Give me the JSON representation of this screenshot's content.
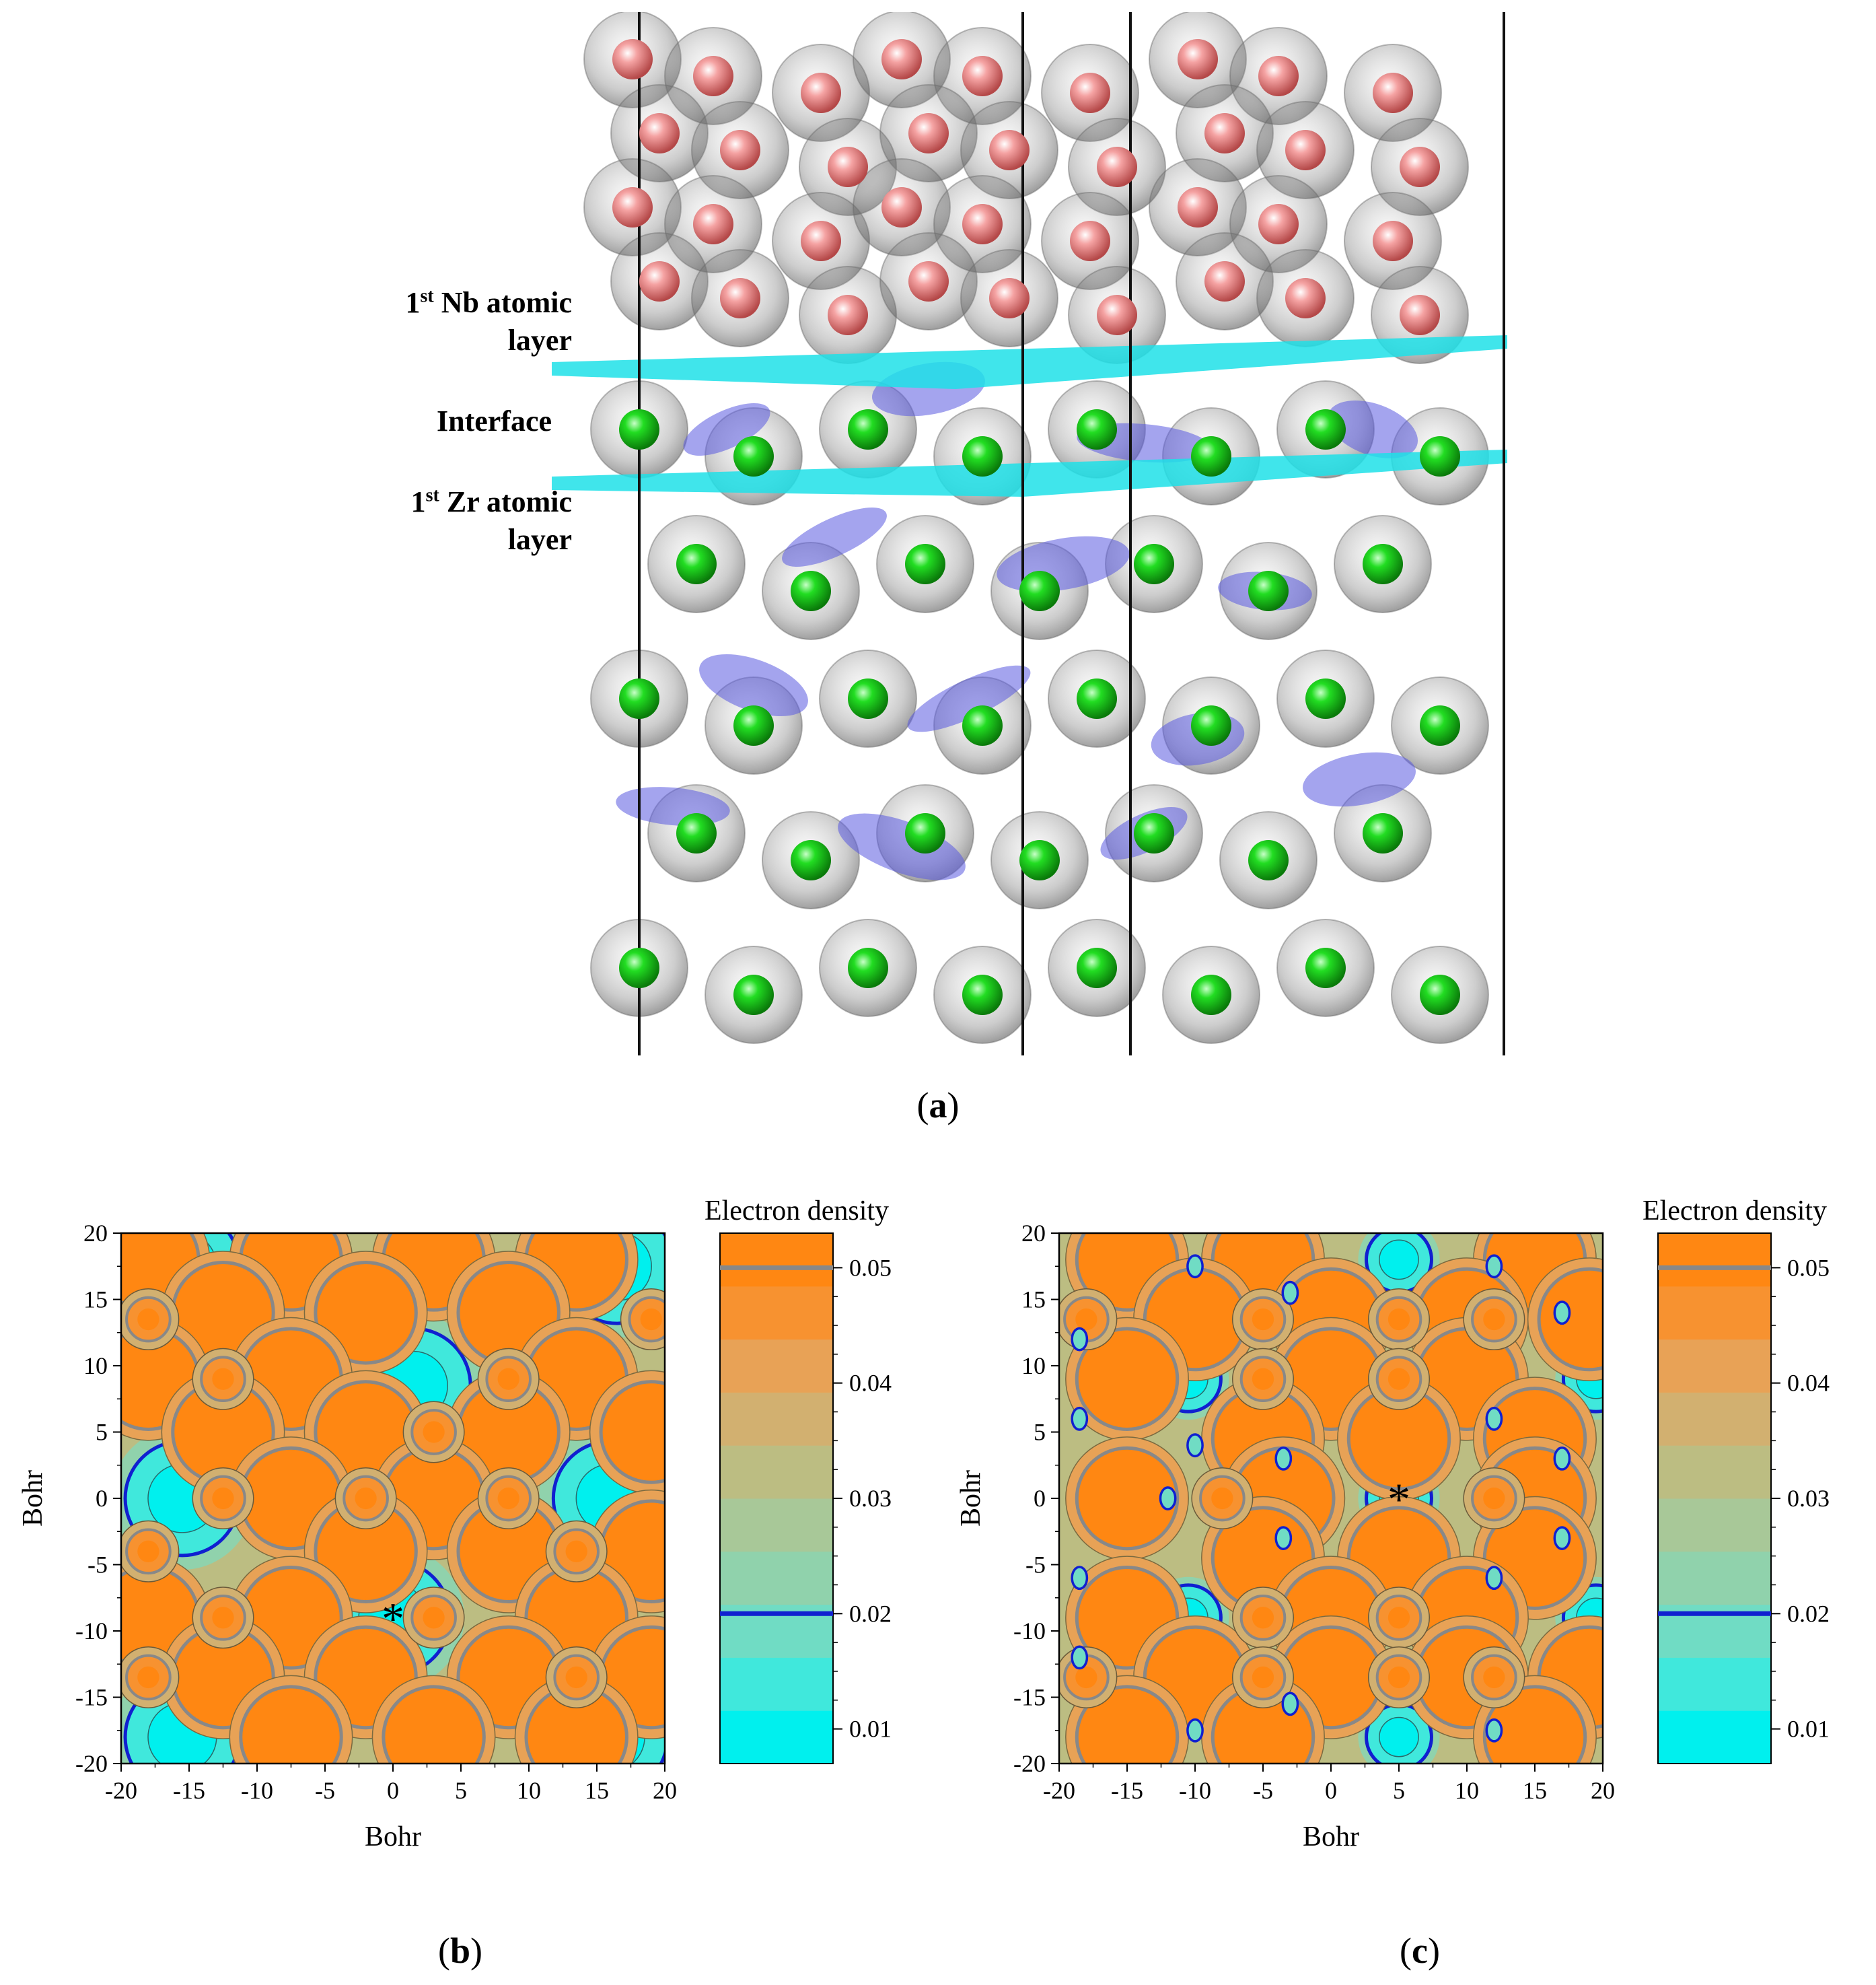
{
  "figure": {
    "panel_a": {
      "caption_letter": "a",
      "labels": {
        "nb_layer_line1_prefix": "1",
        "nb_layer_line1_sup": "st",
        "nb_layer_line1_rest": " Nb atomic",
        "nb_layer_line2": "layer",
        "interface": "Interface",
        "zr_layer_line1_prefix": "1",
        "zr_layer_line1_sup": "st",
        "zr_layer_line1_rest": " Zr atomic",
        "zr_layer_line2": "layer"
      },
      "colors": {
        "nb_atom": "#e87a7a",
        "zr_atom": "#22cc22",
        "shell": "#9a9a9a",
        "isosurface": "#5a5ae0",
        "plane": "#1ee0e8"
      }
    },
    "panel_b": {
      "caption_letter": "b",
      "marker": "*"
    },
    "panel_c": {
      "caption_letter": "c",
      "marker": "*"
    }
  },
  "chart_data": [
    {
      "type": "heatmap",
      "panel": "b",
      "title": "Electron density",
      "xlabel": "Bohr",
      "ylabel": "Bohr",
      "xlim": [
        -20,
        20
      ],
      "ylim": [
        -20,
        20
      ],
      "xticks": [
        "-20",
        "-15",
        "-10",
        "-5",
        "0",
        "5",
        "10",
        "15",
        "20"
      ],
      "yticks": [
        "20",
        "15",
        "10",
        "5",
        "0",
        "-5",
        "-10",
        "-15",
        "-20"
      ],
      "colorbar": {
        "ticks": [
          "0.05",
          "0.04",
          "0.03",
          "0.02",
          "0.01"
        ],
        "range": [
          0.007,
          0.053
        ],
        "highlight_levels": [
          {
            "value": 0.05,
            "color": "#888888"
          },
          {
            "value": 0.02,
            "color": "#1020d0"
          }
        ],
        "colors": [
          "#00f0ee",
          "#40e8dc",
          "#70dcc4",
          "#90d2ac",
          "#a8c898",
          "#bcbd82",
          "#d2b070",
          "#e8a256",
          "#f79230",
          "#ff8712"
        ]
      },
      "marker": {
        "symbol": "*",
        "x": 0,
        "y": -9
      },
      "orange_maxima": [
        [
          -18,
          18
        ],
        [
          -7.5,
          18
        ],
        [
          3,
          18
        ],
        [
          13.5,
          18
        ],
        [
          -12.5,
          14
        ],
        [
          -2,
          14
        ],
        [
          8.5,
          14
        ],
        [
          -18,
          9
        ],
        [
          -7.5,
          9
        ],
        [
          13.5,
          9
        ],
        [
          -12.5,
          5
        ],
        [
          -2,
          5
        ],
        [
          8.5,
          5
        ],
        [
          19,
          5
        ],
        [
          -7.5,
          0
        ],
        [
          3,
          0
        ],
        [
          -2,
          -4
        ],
        [
          8.5,
          -4
        ],
        [
          19,
          -4
        ],
        [
          -18,
          -9
        ],
        [
          -7.5,
          -9
        ],
        [
          13.5,
          -9
        ],
        [
          -12.5,
          -13.5
        ],
        [
          -2,
          -13.5
        ],
        [
          8.5,
          -13.5
        ],
        [
          19,
          -13.5
        ],
        [
          -7.5,
          -18
        ],
        [
          3,
          -18
        ],
        [
          13.5,
          -18
        ]
      ],
      "small_atoms": [
        [
          -18,
          13.5
        ],
        [
          8.5,
          9
        ],
        [
          19,
          13.5
        ],
        [
          -12.5,
          0
        ],
        [
          -2,
          0
        ],
        [
          8.5,
          0
        ],
        [
          -18,
          -4
        ],
        [
          13.5,
          -4
        ],
        [
          3,
          -9
        ],
        [
          -18,
          -13.5
        ],
        [
          13.5,
          -13.5
        ],
        [
          -12.5,
          9
        ],
        [
          3,
          5
        ],
        [
          -12.5,
          -9
        ]
      ],
      "cyan_minima": [
        [
          -15.5,
          17.5
        ],
        [
          16.5,
          17.5
        ],
        [
          1.5,
          8.5
        ],
        [
          -15.5,
          0
        ],
        [
          16,
          0
        ],
        [
          0,
          -9
        ],
        [
          -15.5,
          -18
        ],
        [
          16,
          -18
        ]
      ]
    },
    {
      "type": "heatmap",
      "panel": "c",
      "title": "Electron density",
      "xlabel": "Bohr",
      "ylabel": "Bohr",
      "xlim": [
        -20,
        20
      ],
      "ylim": [
        -20,
        20
      ],
      "xticks": [
        "-20",
        "-15",
        "-10",
        "-5",
        "0",
        "5",
        "10",
        "15",
        "20"
      ],
      "yticks": [
        "20",
        "15",
        "10",
        "5",
        "0",
        "-5",
        "-10",
        "-15",
        "-20"
      ],
      "colorbar": {
        "ticks": [
          "0.05",
          "0.04",
          "0.03",
          "0.02",
          "0.01"
        ],
        "range": [
          0.007,
          0.053
        ],
        "highlight_levels": [
          {
            "value": 0.05,
            "color": "#888888"
          },
          {
            "value": 0.02,
            "color": "#1020d0"
          }
        ],
        "colors": [
          "#00f0ee",
          "#40e8dc",
          "#70dcc4",
          "#90d2ac",
          "#a8c898",
          "#bcbd82",
          "#d2b070",
          "#e8a256",
          "#f79230",
          "#ff8712"
        ]
      },
      "marker": {
        "symbol": "*",
        "x": 5,
        "y": 0
      },
      "orange_maxima": [
        [
          -15,
          18
        ],
        [
          -5,
          18
        ],
        [
          15,
          18
        ],
        [
          -10,
          13.5
        ],
        [
          0,
          13.5
        ],
        [
          10,
          13.5
        ],
        [
          19,
          13.5
        ],
        [
          -15,
          9
        ],
        [
          0,
          9
        ],
        [
          10,
          9
        ],
        [
          -5,
          4.5
        ],
        [
          5,
          4.5
        ],
        [
          15,
          4.5
        ],
        [
          -15,
          0
        ],
        [
          -3.5,
          0
        ],
        [
          15,
          0
        ],
        [
          -5,
          -4.5
        ],
        [
          5,
          -4.5
        ],
        [
          15,
          -4.5
        ],
        [
          -15,
          -9
        ],
        [
          0,
          -9
        ],
        [
          10,
          -9
        ],
        [
          -10,
          -13.5
        ],
        [
          0,
          -13.5
        ],
        [
          10,
          -13.5
        ],
        [
          19,
          -13.5
        ],
        [
          -15,
          -18
        ],
        [
          -5,
          -18
        ],
        [
          15,
          -18
        ]
      ],
      "small_atoms": [
        [
          -18,
          13.5
        ],
        [
          -5,
          13.5
        ],
        [
          5,
          13.5
        ],
        [
          12,
          13.5
        ],
        [
          -5,
          9
        ],
        [
          5,
          9
        ],
        [
          -8,
          0
        ],
        [
          12,
          0
        ],
        [
          -5,
          -9
        ],
        [
          5,
          -9
        ],
        [
          -18,
          -13.5
        ],
        [
          -5,
          -13.5
        ],
        [
          5,
          -13.5
        ],
        [
          12,
          -13.5
        ]
      ],
      "cyan_minima": [
        [
          5,
          18
        ],
        [
          -10.5,
          9
        ],
        [
          19.5,
          9
        ],
        [
          5,
          0
        ],
        [
          -10.5,
          -9
        ],
        [
          19.5,
          -9
        ],
        [
          5,
          -18
        ]
      ],
      "blue_loops": [
        [
          -10,
          17.5
        ],
        [
          -3,
          15.5
        ],
        [
          -18.5,
          12
        ],
        [
          -18.5,
          6
        ],
        [
          -10,
          4
        ],
        [
          -3.5,
          3
        ],
        [
          -12,
          0
        ],
        [
          -3.5,
          -3
        ],
        [
          -18.5,
          -6
        ],
        [
          -18.5,
          -12
        ],
        [
          -3,
          -15.5
        ],
        [
          -10,
          -17.5
        ],
        [
          12,
          17.5
        ],
        [
          17,
          14
        ],
        [
          12,
          6
        ],
        [
          17,
          3
        ],
        [
          12,
          -6
        ],
        [
          17,
          -3
        ],
        [
          12,
          -17.5
        ]
      ]
    }
  ]
}
